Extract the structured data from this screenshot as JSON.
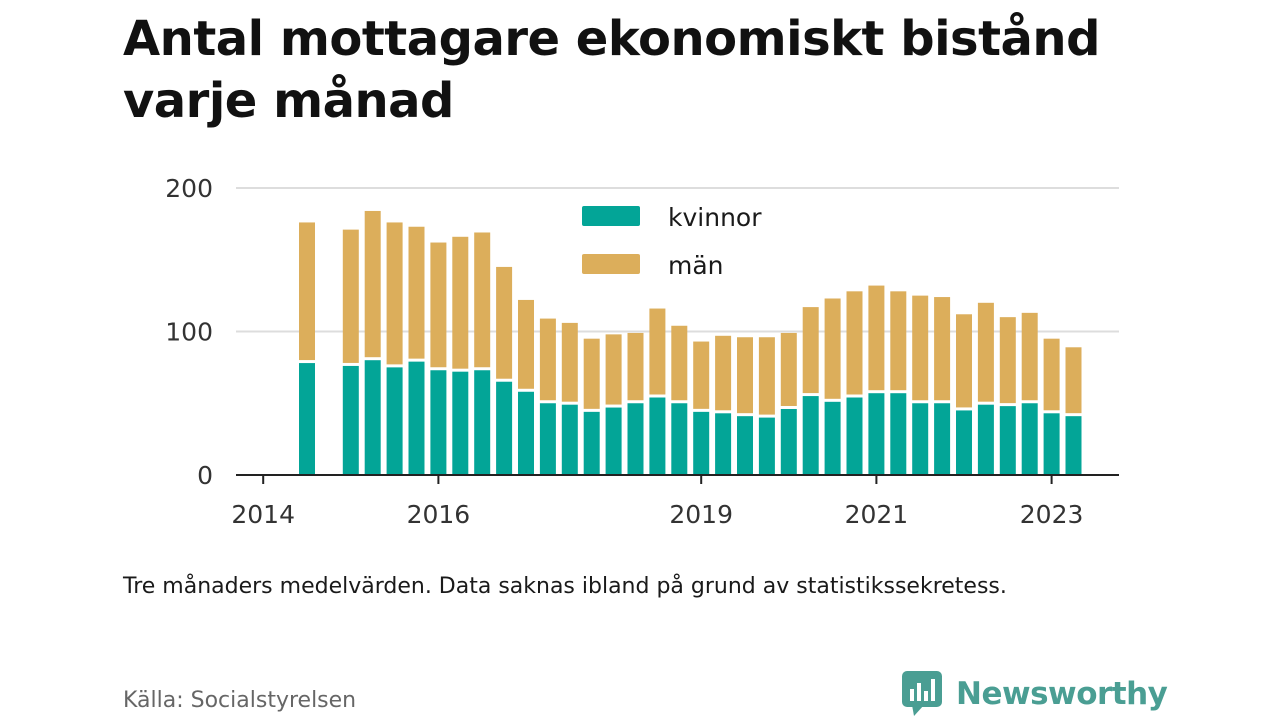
{
  "title": "Antal mottagare ekonomiskt bistånd varje månad",
  "note": "Tre månaders medelvärden. Data saknas ibland på grund av statistikssekretess.",
  "source": "Källa: Socialstyrelsen",
  "brand": "Newsworthy",
  "colors": {
    "kvinnor": "#03a597",
    "man": "#dcae5b",
    "brand": "#4a9e93",
    "grid": "#dddddd",
    "axis": "#222222"
  },
  "chart_data": {
    "type": "bar",
    "stacked": true,
    "x_tick_labels": [
      "2014",
      "2016",
      "2019",
      "2021",
      "2023"
    ],
    "y_ticks": [
      "0",
      "100",
      "200"
    ],
    "ylim": [
      0,
      200
    ],
    "grid": true,
    "legend_position": "top-center",
    "quarters": [
      "2014-Q3",
      "2014-Q4",
      "2015-Q1",
      "2015-Q2",
      "2015-Q3",
      "2015-Q4",
      "2016-Q1",
      "2016-Q2",
      "2016-Q3",
      "2016-Q4",
      "2017-Q1",
      "2017-Q2",
      "2017-Q3",
      "2017-Q4",
      "2018-Q1",
      "2018-Q2",
      "2018-Q3",
      "2018-Q4",
      "2019-Q1",
      "2019-Q2",
      "2019-Q3",
      "2019-Q4",
      "2020-Q1",
      "2020-Q2",
      "2020-Q3",
      "2020-Q4",
      "2021-Q1",
      "2021-Q2",
      "2021-Q3",
      "2021-Q4",
      "2022-Q1",
      "2022-Q2",
      "2022-Q3",
      "2022-Q4",
      "2023-Q1",
      "2023-Q2",
      "2023-Q3",
      "2023-Q4"
    ],
    "series": [
      {
        "name": "kvinnor",
        "values": [
          78,
          null,
          76,
          80,
          75,
          79,
          73,
          72,
          73,
          65,
          58,
          50,
          49,
          44,
          47,
          50,
          54,
          50,
          44,
          43,
          41,
          40,
          46,
          55,
          51,
          54,
          57,
          57,
          50,
          50,
          45,
          49,
          48,
          50,
          43,
          41,
          null,
          null
        ]
      },
      {
        "name": "män",
        "values": [
          98,
          null,
          95,
          104,
          101,
          94,
          89,
          94,
          96,
          80,
          64,
          59,
          57,
          51,
          51,
          49,
          62,
          54,
          49,
          54,
          55,
          56,
          53,
          62,
          72,
          74,
          75,
          71,
          75,
          74,
          67,
          71,
          62,
          63,
          52,
          48,
          null,
          null
        ]
      }
    ]
  }
}
